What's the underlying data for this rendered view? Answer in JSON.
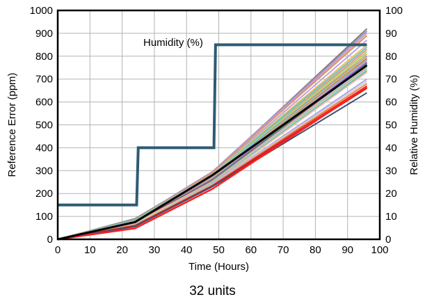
{
  "chart_data": {
    "type": "line",
    "xlabel": "Time (Hours)",
    "ylabel": "Reference Error (ppm)",
    "y2label": "Relative Humidity (%)",
    "caption": "32 units",
    "annotation": "Humidity (%)",
    "xlim": [
      0,
      100
    ],
    "ylim": [
      0,
      1000
    ],
    "y2lim": [
      0,
      100
    ],
    "xticks": [
      0,
      10,
      20,
      30,
      40,
      50,
      60,
      70,
      80,
      90,
      100
    ],
    "yticks": [
      0,
      100,
      200,
      300,
      400,
      500,
      600,
      700,
      800,
      900,
      1000
    ],
    "y2ticks": [
      0,
      10,
      20,
      30,
      40,
      50,
      60,
      70,
      80,
      90,
      100
    ],
    "grid": true,
    "x": [
      0,
      24,
      48,
      96
    ],
    "humidity": {
      "x": [
        0,
        24.5,
        24.5,
        25,
        25,
        48.5,
        48.5,
        49,
        49,
        96
      ],
      "y": [
        15,
        15,
        15,
        40,
        40,
        40,
        40,
        85,
        85,
        85
      ],
      "color": "#2e5b73"
    },
    "series": [
      {
        "values": [
          0,
          90,
          290,
          920
        ],
        "color": "#808060"
      },
      {
        "values": [
          0,
          88,
          295,
          910
        ],
        "color": "#9090d8"
      },
      {
        "values": [
          0,
          85,
          292,
          900
        ],
        "color": "#e890c0"
      },
      {
        "values": [
          0,
          86,
          290,
          890
        ],
        "color": "#c8a060"
      },
      {
        "values": [
          0,
          82,
          285,
          870
        ],
        "color": "#c0a0e0"
      },
      {
        "values": [
          0,
          80,
          283,
          850
        ],
        "color": "#f4c060"
      },
      {
        "values": [
          0,
          83,
          280,
          840
        ],
        "color": "#60c8c8"
      },
      {
        "values": [
          0,
          78,
          275,
          830
        ],
        "color": "#f09080"
      },
      {
        "values": [
          0,
          80,
          278,
          820
        ],
        "color": "#a0d080"
      },
      {
        "values": [
          0,
          76,
          272,
          810
        ],
        "color": "#e0b040"
      },
      {
        "values": [
          0,
          79,
          276,
          800
        ],
        "color": "#70a0e0"
      },
      {
        "values": [
          0,
          75,
          270,
          795
        ],
        "color": "#f0d060"
      },
      {
        "values": [
          0,
          77,
          268,
          790
        ],
        "color": "#d07070"
      },
      {
        "values": [
          0,
          74,
          266,
          785
        ],
        "color": "#80c0a0"
      },
      {
        "values": [
          0,
          76,
          265,
          780
        ],
        "color": "#b0b0b0"
      },
      {
        "values": [
          0,
          72,
          262,
          775
        ],
        "color": "#e070e0"
      },
      {
        "values": [
          0,
          73,
          260,
          770
        ],
        "color": "#6060c0"
      },
      {
        "values": [
          0,
          70,
          258,
          765
        ],
        "color": "#40a060"
      },
      {
        "values": [
          0,
          72,
          255,
          760
        ],
        "color": "#c04040"
      },
      {
        "values": [
          0,
          69,
          252,
          755
        ],
        "color": "#a0e0f0"
      },
      {
        "values": [
          0,
          71,
          250,
          750
        ],
        "color": "#f0a0a0"
      },
      {
        "values": [
          0,
          68,
          248,
          745
        ],
        "color": "#90d0d0"
      },
      {
        "values": [
          0,
          70,
          246,
          740
        ],
        "color": "#c0e080"
      },
      {
        "values": [
          0,
          66,
          244,
          735
        ],
        "color": "#50b0e0"
      },
      {
        "values": [
          0,
          67,
          242,
          730
        ],
        "color": "#f0c0a0"
      },
      {
        "values": [
          0,
          65,
          240,
          700
        ],
        "color": "#b0a0f0"
      },
      {
        "values": [
          0,
          64,
          238,
          690
        ],
        "color": "#d0d0d0"
      },
      {
        "values": [
          0,
          62,
          236,
          680
        ],
        "color": "#f08040"
      },
      {
        "values": [
          0,
          60,
          234,
          670
        ],
        "color": "#e03030"
      },
      {
        "values": [
          0,
          58,
          232,
          660
        ],
        "color": "#c02020"
      },
      {
        "values": [
          0,
          56,
          230,
          640
        ],
        "color": "#405070"
      },
      {
        "values": [
          0,
          48,
          220,
          665
        ],
        "color": "#ff2020",
        "width": 2.5
      },
      {
        "values": [
          0,
          75,
          280,
          760
        ],
        "color": "#000000",
        "width": 3
      }
    ]
  }
}
